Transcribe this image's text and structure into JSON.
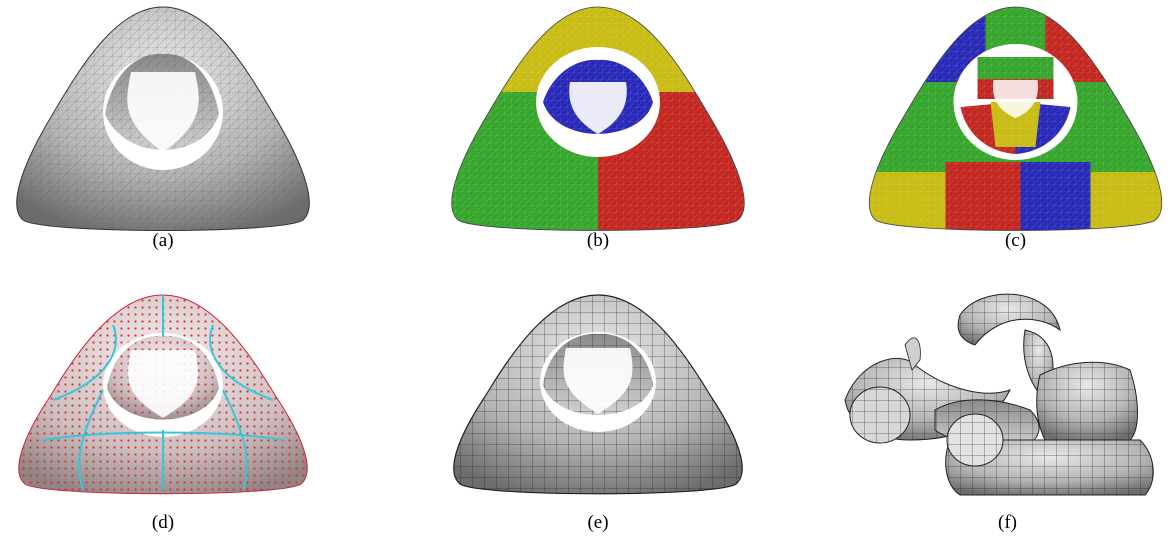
{
  "panels": [
    {
      "id": "a",
      "caption": "(a)",
      "style": "triangle-mesh"
    },
    {
      "id": "b",
      "caption": "(b)",
      "style": "segmented-3"
    },
    {
      "id": "c",
      "caption": "(c)",
      "style": "segmented-many"
    },
    {
      "id": "d",
      "caption": "(d)",
      "style": "sample-points"
    },
    {
      "id": "e",
      "caption": "(e)",
      "style": "quad-mesh"
    },
    {
      "id": "f",
      "caption": "(f)",
      "style": "exploded-patches"
    }
  ],
  "colors": {
    "background": "#ffffff",
    "surface_gray": "#b9b9b9",
    "seg_yellow": "#c8bb12",
    "seg_green": "#35a52b",
    "seg_red": "#c2261f",
    "seg_blue": "#2828b8",
    "points_red": "#e0302a",
    "patch_cyan": "#39c6d8"
  }
}
